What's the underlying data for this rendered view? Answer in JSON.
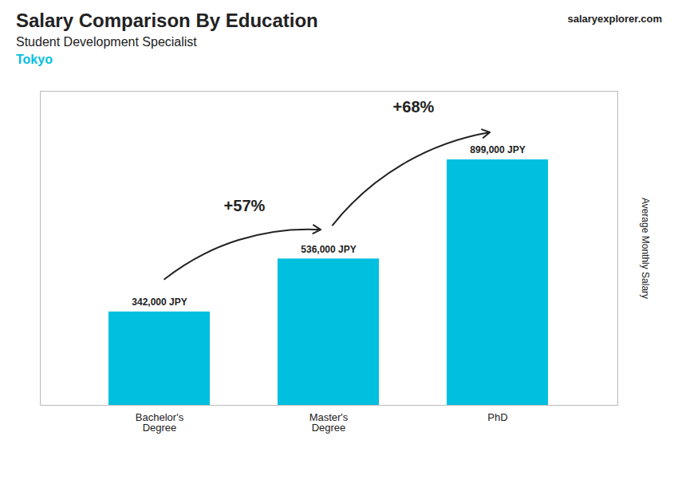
{
  "chart_data": {
    "type": "bar",
    "title": "Salary Comparison By Education",
    "subtitle": "Student Development Specialist",
    "ylabel": "Average Monthly Salary",
    "categories": [
      "Bachelor's\nDegree",
      "Master's\nDegree",
      "PhD"
    ],
    "values": [
      342000,
      536000,
      899000
    ],
    "value_labels": [
      "342,000 JPY",
      "536,000 JPY",
      "899,000 JPY"
    ],
    "data_labels": true,
    "color": "#00BFDF",
    "ylim": [
      0,
      1150000
    ],
    "yticks": [],
    "tick_labels": "x",
    "grid": false,
    "annotations": [
      {
        "text": "Tokyo"
      },
      {
        "text": "salaryexplorer.com"
      },
      {
        "text": "+57%",
        "from": "Bachelor's\nDegree",
        "to": "Master's\nDegree"
      },
      {
        "text": "+68%",
        "from": "Master's\nDegree",
        "to": "PhD"
      }
    ]
  }
}
